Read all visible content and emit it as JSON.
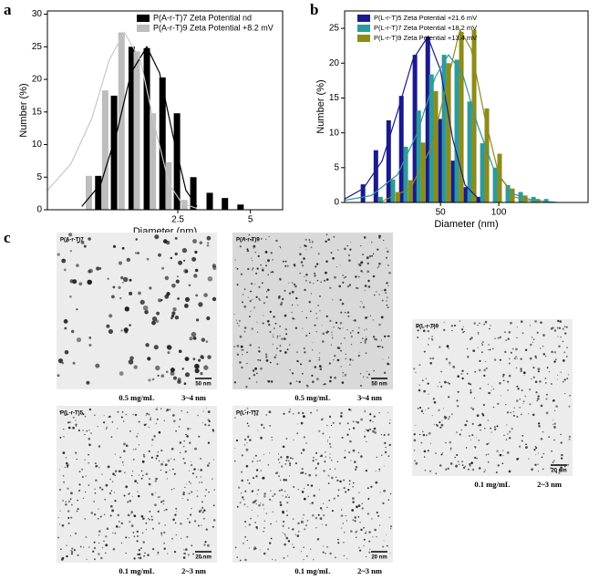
{
  "panel_labels": [
    "a",
    "b",
    "c"
  ],
  "chart_data": [
    {
      "type": "bar",
      "xscale": "log",
      "xlabel": "Diameter (nm)",
      "ylabel": "Number (%)",
      "xlim": [
        0.72,
        6.8
      ],
      "xticks": [
        2.5,
        5
      ],
      "ylim": [
        0,
        30.5
      ],
      "yticks": [
        0,
        5,
        10,
        15,
        20,
        25,
        30
      ],
      "legend": "upper right",
      "series": [
        {
          "name": "P(A-r-T)7 Zeta Potential nd",
          "color": "#000000",
          "x": [
            1.17,
            1.36,
            1.61,
            1.86,
            2.16,
            2.48,
            2.9,
            3.39,
            3.92,
            4.55
          ],
          "values": [
            5.2,
            17.5,
            25,
            24.8,
            20.3,
            14.8,
            5,
            2.6,
            1.8,
            0.8
          ],
          "curve": {
            "x": [
              1.0,
              1.2,
              1.4,
              1.6,
              1.86,
              2.1,
              2.4,
              2.7,
              3.0
            ],
            "values": [
              0.5,
              4,
              12,
              21,
              25,
              21,
              11,
              3,
              0.5
            ]
          }
        },
        {
          "name": "P(A-r-T)9 Zeta Potential +8.2 mV",
          "color": "#bdbdbd",
          "x": [
            1.07,
            1.25,
            1.46,
            1.69,
            1.97,
            2.29,
            2.66
          ],
          "values": [
            5.2,
            18.3,
            27.2,
            24.3,
            14.8,
            7.3,
            1.5
          ],
          "curve": {
            "x": [
              0.72,
              0.9,
              1.1,
              1.3,
              1.5,
              1.75,
              2.0,
              2.3,
              2.6,
              3.0
            ],
            "values": [
              3,
              7,
              14,
              23,
              27.2,
              23,
              13,
              4,
              1,
              0.2
            ]
          }
        }
      ]
    },
    {
      "type": "bar",
      "xscale": "log",
      "xlabel": "Diameter (nm)",
      "ylabel": "Number (%)",
      "xlim": [
        16,
        289
      ],
      "xticks": [
        50,
        100
      ],
      "ylim": [
        0,
        27.5
      ],
      "yticks": [
        0,
        5,
        10,
        15,
        20,
        25
      ],
      "legend": "upper left",
      "series": [
        {
          "name": "P(L-r-T)5 Zeta Potential +21.6 mV",
          "color": "#1a1a8c",
          "x": [
            19.9,
            23.2,
            27.0,
            31.4,
            36.9,
            43.0,
            50,
            58.2,
            67.7,
            78.8
          ],
          "values": [
            2.6,
            7.5,
            11.8,
            15.3,
            21.2,
            23.8,
            12,
            6,
            2.2,
            0.8
          ],
          "curve": {
            "x": [
              16,
              20,
              25,
              30,
              36,
              43,
              50,
              58,
              67,
              80
            ],
            "values": [
              0.5,
              2,
              6,
              13,
              20.5,
              23.8,
              19,
              9,
              2.5,
              0.3
            ]
          }
        },
        {
          "name": "P(L-r-T)7 Zeta Potential +18.2 mV",
          "color": "#2e9a9a",
          "x": [
            24.5,
            28.4,
            33.1,
            38.6,
            44.9,
            52.2,
            60.7,
            70.7,
            82.3,
            95.7,
            111.4,
            129.7,
            151,
            175.6
          ],
          "values": [
            0.8,
            3.3,
            8,
            13.2,
            18.4,
            21.2,
            20.5,
            14.5,
            8.5,
            5,
            2.5,
            1.5,
            0.8,
            0.5
          ],
          "curve": {
            "x": [
              16,
              22,
              30,
              38,
              47,
              55,
              65,
              78,
              95,
              120,
              150,
              200
            ],
            "values": [
              0.3,
              1,
              4,
              10,
              18,
              21.2,
              18.5,
              11,
              4.5,
              1.2,
              0.3,
              0
            ]
          }
        },
        {
          "name": "P(L-r-T)9 Zeta Potential +13.4 mV",
          "color": "#8c8c1a",
          "x": [
            30.1,
            35.0,
            40.7,
            47.3,
            55.1,
            64.1,
            74.6,
            86.8,
            101,
            117.6,
            136.9,
            159.3
          ],
          "values": [
            1.5,
            3.2,
            8.6,
            16,
            20,
            24.5,
            24.8,
            13.5,
            7,
            2,
            1,
            0.5
          ],
          "curve": {
            "x": [
              25,
              35,
              45,
              55,
              63,
              72,
              85,
              100,
              120,
              150
            ],
            "values": [
              0.2,
              2,
              8,
              18,
              24.8,
              22,
              12,
              4,
              0.8,
              0.1
            ]
          }
        }
      ]
    }
  ],
  "images": [
    {
      "label": "P(A-r-T)7",
      "scale": "50 nm",
      "concentration": "0.5 mg/mL",
      "size": "3~4 nm"
    },
    {
      "label": "P(A-r-T)9",
      "scale": "50 nm",
      "concentration": "0.5 mg/mL",
      "size": "3~4 nm"
    },
    {
      "label": "P(L-r-T)9",
      "scale": "20 nm",
      "concentration": "0.1 mg/mL",
      "size": "2~3 nm"
    },
    {
      "label": "P(L-r-T)5",
      "scale": "20 nm",
      "concentration": "0.1 mg/mL",
      "size": "2~3 nm"
    },
    {
      "label": "P(L-r-T)7",
      "scale": "20 nm",
      "concentration": "0.1 mg/mL",
      "size": "2~3 nm"
    }
  ]
}
